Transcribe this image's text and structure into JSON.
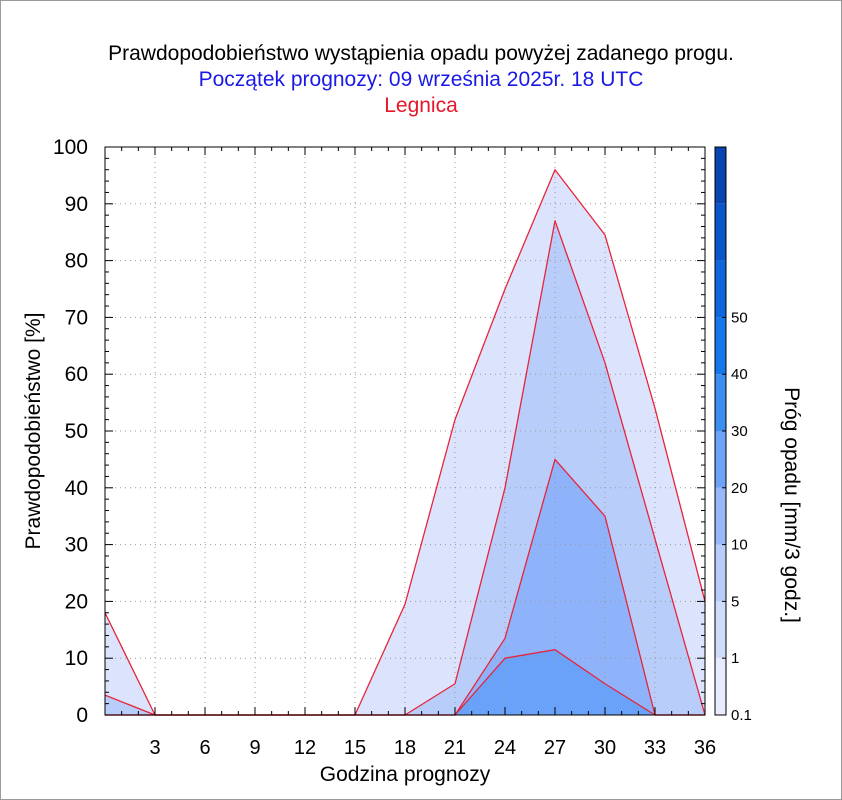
{
  "chart_data": {
    "type": "area",
    "title": "Prawdopodobieństwo wystąpienia opadu powyżej zadanego progu.",
    "subtitle": "Początek prognozy: 09 września 2025r. 18 UTC",
    "location": "Legnica",
    "xlabel": "Godzina prognozy",
    "ylabel": "Prawdopodobieństwo [%]",
    "colorbar_label": "Próg opadu [mm/3 godz.]",
    "xlim": [
      0,
      36
    ],
    "ylim": [
      0,
      100
    ],
    "x": [
      0,
      3,
      6,
      9,
      12,
      15,
      18,
      21,
      24,
      27,
      30,
      33,
      36
    ],
    "x_ticks": [
      "3",
      "6",
      "9",
      "12",
      "15",
      "18",
      "21",
      "24",
      "27",
      "30",
      "33",
      "36"
    ],
    "y_ticks": [
      "0",
      "10",
      "20",
      "30",
      "40",
      "50",
      "60",
      "70",
      "80",
      "90",
      "100"
    ],
    "colorbar_ticks": [
      "0.1",
      "1",
      "5",
      "10",
      "20",
      "30",
      "40",
      "50"
    ],
    "colorbar_colors": [
      "#e6ecfd",
      "#d0dcfb",
      "#b8cdfa",
      "#98b9f9",
      "#6ca3f8",
      "#3d8ef1",
      "#1478ec",
      "#0f66dc",
      "#0a56c9",
      "#0944b0"
    ],
    "series": [
      {
        "threshold": "0.1",
        "color": "#dce4fd",
        "values": [
          18,
          0,
          0,
          0,
          0,
          0,
          19.5,
          52,
          75,
          96,
          84.5,
          54,
          20
        ]
      },
      {
        "threshold": "1",
        "color": "#b8cdfa",
        "values": [
          3.5,
          0,
          0,
          0,
          0,
          0,
          0,
          5.5,
          40,
          87,
          62,
          31,
          0
        ]
      },
      {
        "threshold": "5",
        "color": "#8fb3fa",
        "values": [
          0,
          0,
          0,
          0,
          0,
          0,
          0,
          0,
          13.5,
          45,
          35,
          0,
          0
        ]
      },
      {
        "threshold": "10",
        "color": "#6aa2f9",
        "values": [
          0,
          0,
          0,
          0,
          0,
          0,
          0,
          0,
          10,
          11.5,
          5.5,
          0,
          0
        ]
      }
    ],
    "line_color": "#e8243a",
    "grid": true
  }
}
